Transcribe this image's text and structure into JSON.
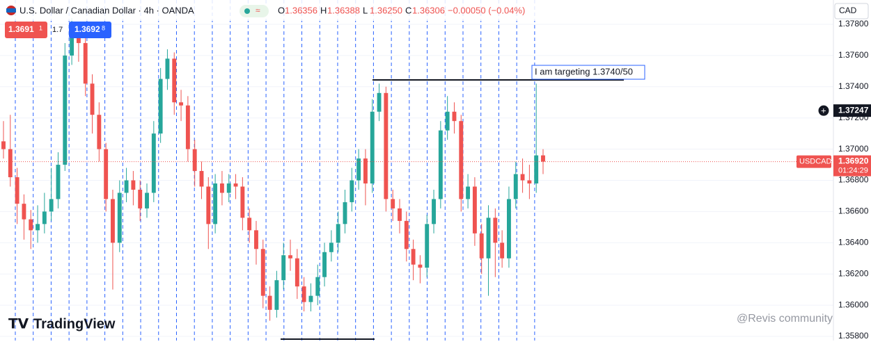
{
  "header": {
    "symbol": "U.S. Dollar / Canadian Dollar · 4h · OANDA",
    "ohlc": [
      {
        "letter": "O",
        "value": "1.36356"
      },
      {
        "letter": "H",
        "value": "1.36388"
      },
      {
        "letter": "L",
        "value": "1.36250"
      },
      {
        "letter": "C",
        "value": "1.36306"
      }
    ],
    "change": "−0.00050 (−0.04%)",
    "sell": "1.3691",
    "sell_pip": "1",
    "spread": "1.7",
    "buy": "1.3692",
    "buy_pip": "8",
    "currency": "CAD",
    "logo": "TradingView",
    "watermark": "@Revis community"
  },
  "chart_data": {
    "type": "candlestick",
    "up_color": "#26a69a",
    "down_color": "#ef5350",
    "open": [
      1.3705,
      1.37,
      1.3682,
      1.3665,
      1.3655,
      1.3648,
      1.3652,
      1.366,
      1.3668,
      1.369,
      1.376,
      1.3772,
      1.3768,
      1.3742,
      1.3722,
      1.37,
      1.3668,
      1.364,
      1.3672,
      1.368,
      1.3674,
      1.3662,
      1.3672,
      1.371,
      1.3745,
      1.3758,
      1.373,
      1.3728,
      1.37,
      1.3686,
      1.3676,
      1.3652,
      1.3678,
      1.3672,
      1.3678,
      1.3676,
      1.3656,
      1.3648,
      1.3636,
      1.3606,
      1.3597,
      1.3616,
      1.3632,
      1.363,
      1.3612,
      1.3602,
      1.3606,
      1.3618,
      1.3634,
      1.364,
      1.3652,
      1.3666,
      1.368,
      1.3694,
      1.3678,
      1.3724,
      1.3736,
      1.3668,
      1.3662,
      1.3654,
      1.3636,
      1.3626,
      1.3624,
      1.3652,
      1.3668,
      1.3712,
      1.3724,
      1.3718,
      1.3668,
      1.3676,
      1.3646,
      1.363,
      1.3656,
      1.364,
      1.363,
      1.3668,
      1.3684,
      1.368,
      1.3678,
      1.3696
    ],
    "high": [
      1.3718,
      1.3722,
      1.3688,
      1.3671,
      1.3661,
      1.3664,
      1.3672,
      1.3688,
      1.3698,
      1.3768,
      1.3784,
      1.378,
      1.3772,
      1.3748,
      1.373,
      1.3704,
      1.3674,
      1.368,
      1.3688,
      1.3686,
      1.368,
      1.3678,
      1.3718,
      1.3752,
      1.3764,
      1.3762,
      1.3738,
      1.3734,
      1.3706,
      1.3692,
      1.3682,
      1.3684,
      1.3686,
      1.3684,
      1.3684,
      1.3682,
      1.3662,
      1.3654,
      1.3642,
      1.3612,
      1.3622,
      1.364,
      1.3642,
      1.3636,
      1.3618,
      1.3614,
      1.3626,
      1.364,
      1.3648,
      1.366,
      1.3674,
      1.3688,
      1.37,
      1.37,
      1.3732,
      1.3742,
      1.374,
      1.3674,
      1.3668,
      1.366,
      1.3642,
      1.3632,
      1.3658,
      1.3674,
      1.3718,
      1.3734,
      1.373,
      1.3722,
      1.3684,
      1.3682,
      1.3652,
      1.3664,
      1.3662,
      1.3648,
      1.3676,
      1.3692,
      1.3694,
      1.369,
      1.3742,
      1.37
    ],
    "low": [
      1.3694,
      1.3676,
      1.3652,
      1.3642,
      1.3636,
      1.364,
      1.3646,
      1.3654,
      1.3662,
      1.3686,
      1.3754,
      1.3756,
      1.3734,
      1.371,
      1.3692,
      1.366,
      1.361,
      1.3634,
      1.3666,
      1.3664,
      1.3654,
      1.3656,
      1.3666,
      1.3704,
      1.3738,
      1.3722,
      1.3718,
      1.3692,
      1.3676,
      1.3668,
      1.3636,
      1.3646,
      1.3664,
      1.3666,
      1.3668,
      1.3648,
      1.364,
      1.3626,
      1.3598,
      1.359,
      1.3592,
      1.361,
      1.3622,
      1.3604,
      1.3596,
      1.3596,
      1.36,
      1.3612,
      1.3628,
      1.3634,
      1.3646,
      1.366,
      1.3674,
      1.3664,
      1.3672,
      1.3718,
      1.366,
      1.3654,
      1.3646,
      1.3628,
      1.3616,
      1.3614,
      1.3618,
      1.3646,
      1.3662,
      1.3706,
      1.371,
      1.366,
      1.3662,
      1.3638,
      1.362,
      1.3606,
      1.3618,
      1.3624,
      1.3624,
      1.3662,
      1.3672,
      1.3668,
      1.3672,
      1.3684
    ],
    "close": [
      1.37,
      1.3682,
      1.3665,
      1.3655,
      1.3648,
      1.3652,
      1.366,
      1.3668,
      1.369,
      1.376,
      1.3772,
      1.3768,
      1.3742,
      1.3722,
      1.37,
      1.3668,
      1.364,
      1.3672,
      1.368,
      1.3674,
      1.3662,
      1.3672,
      1.371,
      1.3745,
      1.3758,
      1.373,
      1.3728,
      1.37,
      1.3686,
      1.3676,
      1.3652,
      1.3678,
      1.3672,
      1.3678,
      1.3676,
      1.3656,
      1.3648,
      1.3636,
      1.3606,
      1.3597,
      1.3616,
      1.3632,
      1.363,
      1.3612,
      1.3602,
      1.3606,
      1.3618,
      1.3634,
      1.364,
      1.3652,
      1.3666,
      1.368,
      1.3694,
      1.3678,
      1.3724,
      1.3736,
      1.3668,
      1.3662,
      1.3654,
      1.3636,
      1.3626,
      1.3624,
      1.3652,
      1.3668,
      1.3712,
      1.3724,
      1.3718,
      1.3668,
      1.3676,
      1.3646,
      1.363,
      1.3656,
      1.364,
      1.363,
      1.3668,
      1.3684,
      1.368,
      1.3678,
      1.3696,
      1.3692
    ],
    "ylim": [
      1.357733,
      1.379559
    ],
    "yticks": [
      {
        "value": 1.358,
        "label": "1.35800"
      },
      {
        "value": 1.36,
        "label": "1.36000"
      },
      {
        "value": 1.362,
        "label": "1.36200"
      },
      {
        "value": 1.364,
        "label": "1.36400"
      },
      {
        "value": 1.366,
        "label": "1.36600"
      },
      {
        "value": 1.368,
        "label": "1.36800"
      },
      {
        "value": 1.37,
        "label": "1.37000"
      },
      {
        "value": 1.372,
        "label": "1.37200"
      },
      {
        "value": 1.374,
        "label": "1.37400"
      },
      {
        "value": 1.376,
        "label": "1.37600"
      },
      {
        "value": 1.378,
        "label": "1.37800"
      }
    ],
    "grid": true,
    "crosshair_price": {
      "value": 1.37247,
      "label": "1.37247"
    },
    "last_price": {
      "name": "USDCAD",
      "value": 1.3692,
      "label": "1.36920",
      "countdown": "01:24:29"
    },
    "annotation": "I am targeting 1.3740/50"
  }
}
